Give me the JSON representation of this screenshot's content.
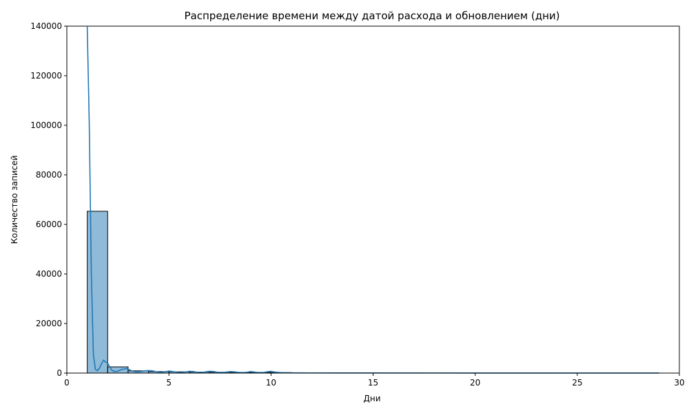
{
  "chart_data": {
    "type": "bar",
    "title": "Распределение времени между датой расхода и обновлением (дни)",
    "xlabel": "Дни",
    "ylabel": "Количество записей",
    "xlim": [
      0,
      30
    ],
    "ylim": [
      0,
      140000
    ],
    "xticks": [
      0,
      5,
      10,
      15,
      20,
      25,
      30
    ],
    "yticks": [
      0,
      20000,
      40000,
      60000,
      80000,
      100000,
      120000,
      140000
    ],
    "grid": false,
    "bar_color": "#1f77b4",
    "line_color": "#1f77b4",
    "bins": [
      {
        "x0": 1,
        "x1": 2,
        "count": 65300
      },
      {
        "x0": 2,
        "x1": 3,
        "count": 2500
      },
      {
        "x0": 3,
        "x1": 4,
        "count": 900
      },
      {
        "x0": 4,
        "x1": 5,
        "count": 600
      },
      {
        "x0": 5,
        "x1": 6,
        "count": 500
      },
      {
        "x0": 6,
        "x1": 7,
        "count": 400
      },
      {
        "x0": 7,
        "x1": 8,
        "count": 350
      },
      {
        "x0": 8,
        "x1": 9,
        "count": 300
      },
      {
        "x0": 9,
        "x1": 10,
        "count": 300
      },
      {
        "x0": 10,
        "x1": 11,
        "count": 200
      },
      {
        "x0": 11,
        "x1": 12,
        "count": 80
      },
      {
        "x0": 12,
        "x1": 13,
        "count": 60
      },
      {
        "x0": 13,
        "x1": 14,
        "count": 50
      },
      {
        "x0": 14,
        "x1": 15,
        "count": 40
      },
      {
        "x0": 15,
        "x1": 16,
        "count": 30
      },
      {
        "x0": 16,
        "x1": 17,
        "count": 30
      },
      {
        "x0": 17,
        "x1": 18,
        "count": 25
      },
      {
        "x0": 18,
        "x1": 19,
        "count": 25
      },
      {
        "x0": 19,
        "x1": 20,
        "count": 20
      },
      {
        "x0": 20,
        "x1": 21,
        "count": 20
      },
      {
        "x0": 21,
        "x1": 22,
        "count": 15
      },
      {
        "x0": 22,
        "x1": 23,
        "count": 15
      },
      {
        "x0": 23,
        "x1": 24,
        "count": 15
      },
      {
        "x0": 24,
        "x1": 25,
        "count": 10
      },
      {
        "x0": 25,
        "x1": 26,
        "count": 10
      },
      {
        "x0": 26,
        "x1": 27,
        "count": 10
      },
      {
        "x0": 27,
        "x1": 28,
        "count": 10
      },
      {
        "x0": 28,
        "x1": 29,
        "count": 10
      }
    ],
    "kde": {
      "x": [
        1.0,
        1.1,
        1.2,
        1.3,
        1.4,
        1.5,
        1.6,
        1.7,
        1.8,
        1.9,
        2.0,
        2.1,
        2.2,
        2.3,
        2.4,
        2.5,
        2.7,
        2.9,
        3.0,
        3.2,
        3.4,
        3.6,
        3.8,
        4.0,
        4.2,
        4.4,
        4.6,
        4.8,
        5.0,
        5.2,
        5.4,
        5.6,
        5.8,
        6.0,
        6.2,
        6.4,
        6.6,
        6.8,
        7.0,
        7.2,
        7.4,
        7.6,
        7.8,
        8.0,
        8.2,
        8.4,
        8.6,
        8.8,
        9.0,
        9.2,
        9.4,
        9.6,
        9.8,
        10.0,
        10.2,
        10.5,
        11.0,
        12.0,
        13.0,
        15.0,
        20.0,
        25.0,
        29.0
      ],
      "y": [
        139800,
        100000,
        40000,
        7500,
        1500,
        1000,
        2000,
        3800,
        5200,
        4500,
        4000,
        2500,
        1200,
        700,
        600,
        800,
        1500,
        1800,
        1600,
        800,
        500,
        600,
        900,
        1000,
        900,
        500,
        300,
        500,
        800,
        600,
        300,
        200,
        400,
        700,
        600,
        300,
        200,
        500,
        700,
        600,
        300,
        200,
        400,
        600,
        500,
        300,
        150,
        300,
        600,
        400,
        200,
        150,
        500,
        700,
        400,
        200,
        100,
        70,
        50,
        40,
        30,
        20,
        10
      ]
    }
  }
}
